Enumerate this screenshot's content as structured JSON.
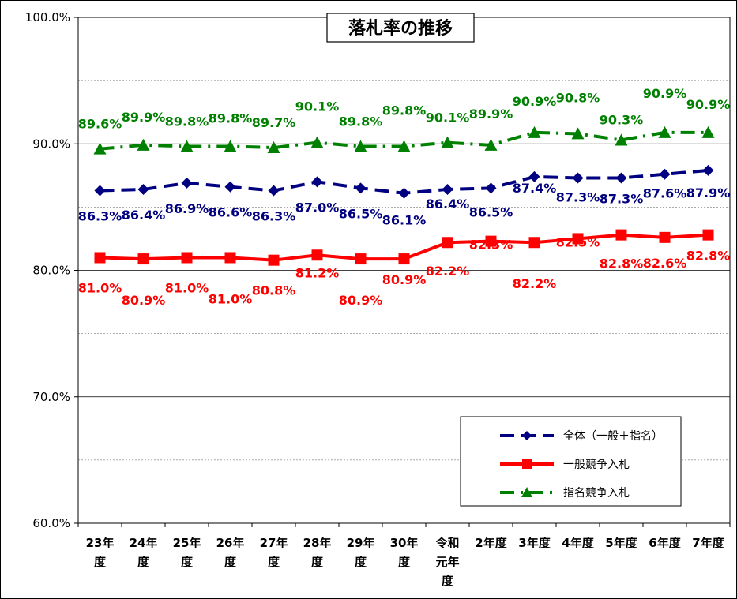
{
  "chart_data": {
    "type": "line",
    "title": "落札率の推移",
    "categories": [
      [
        "23年",
        "度"
      ],
      [
        "24年",
        "度"
      ],
      [
        "25年",
        "度"
      ],
      [
        "26年",
        "度"
      ],
      [
        "27年",
        "度"
      ],
      [
        "28年",
        "度"
      ],
      [
        "29年",
        "度"
      ],
      [
        "30年",
        "度"
      ],
      [
        "令和",
        "元年",
        "度"
      ],
      [
        "2年度"
      ],
      [
        "3年度"
      ],
      [
        "4年度"
      ],
      [
        "5年度"
      ],
      [
        "6年度"
      ],
      [
        "7年度"
      ]
    ],
    "ylim": [
      60,
      100
    ],
    "yticks": [
      60,
      70,
      80,
      90,
      100
    ],
    "ytick_labels": [
      "60.0%",
      "70.0%",
      "80.0%",
      "90.0%",
      "100.0%"
    ],
    "grid": "horizontal",
    "legend_position": "bottom-right",
    "series": [
      {
        "name": "全体（一般＋指名）",
        "color": "#000080",
        "marker": "diamond",
        "line": "dashed",
        "values": [
          86.3,
          86.4,
          86.9,
          86.6,
          86.3,
          87.0,
          86.5,
          86.1,
          86.4,
          86.5,
          87.4,
          87.3,
          87.3,
          87.6,
          87.9
        ],
        "labels": [
          "86.3%",
          "86.4%",
          "86.9%",
          "86.6%",
          "86.3%",
          "87.0%",
          "86.5%",
          "86.1%",
          "86.4%",
          "86.5%",
          "87.4%",
          "87.3%",
          "87.3%",
          "87.6%",
          "87.9%"
        ]
      },
      {
        "name": "一般競争入札",
        "color": "#ff0000",
        "marker": "square",
        "line": "solid",
        "values": [
          81.0,
          80.9,
          81.0,
          81.0,
          80.8,
          81.2,
          80.9,
          80.9,
          82.2,
          82.3,
          82.2,
          82.5,
          82.8,
          82.6,
          82.8
        ],
        "labels": [
          "81.0%",
          "80.9%",
          "81.0%",
          "81.0%",
          "80.8%",
          "81.2%",
          "80.9%",
          "80.9%",
          "82.2%",
          "82.3%",
          "82.2%",
          "82.5%",
          "82.8%",
          "82.6%",
          "82.8%"
        ]
      },
      {
        "name": "指名競争入札",
        "color": "#008000",
        "marker": "triangle",
        "line": "dash-dot",
        "values": [
          89.6,
          89.9,
          89.8,
          89.8,
          89.7,
          90.1,
          89.8,
          89.8,
          90.1,
          89.9,
          90.9,
          90.8,
          90.3,
          90.9,
          90.9
        ],
        "labels": [
          "89.6%",
          "89.9%",
          "89.8%",
          "89.8%",
          "89.7%",
          "90.1%",
          "89.8%",
          "89.8%",
          "90.1%",
          "89.9%",
          "90.9%",
          "90.8%",
          "90.3%",
          "90.9%",
          "90.9%"
        ]
      }
    ]
  }
}
